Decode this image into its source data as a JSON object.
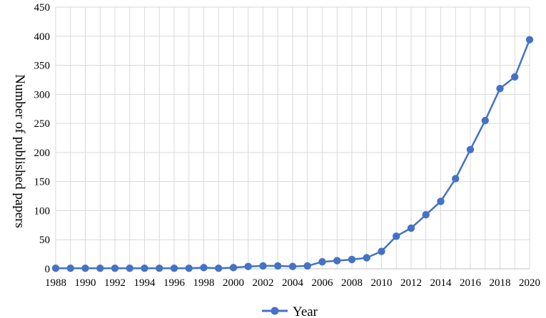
{
  "chart_data": {
    "type": "line",
    "title": "",
    "xlabel": "",
    "ylabel": "Number of published papers",
    "ylim": [
      0,
      450
    ],
    "y_ticks": [
      "0",
      "50",
      "100",
      "150",
      "200",
      "250",
      "300",
      "350",
      "400",
      "450"
    ],
    "x": [
      1988,
      1989,
      1990,
      1991,
      1992,
      1993,
      1994,
      1995,
      1996,
      1997,
      1998,
      1999,
      2000,
      2001,
      2002,
      2003,
      2004,
      2005,
      2006,
      2007,
      2008,
      2009,
      2010,
      2011,
      2012,
      2013,
      2014,
      2015,
      2016,
      2017,
      2018,
      2019,
      2020
    ],
    "x_ticks": [
      "1988",
      "1990",
      "1992",
      "1994",
      "1996",
      "1998",
      "2000",
      "2002",
      "2004",
      "2006",
      "2008",
      "2010",
      "2012",
      "2014",
      "2016",
      "2018",
      "2020"
    ],
    "grid": true,
    "legend_position": "bottom",
    "series": [
      {
        "name": "Year",
        "color": "#4472c4",
        "marker": "circle",
        "values": [
          1,
          1,
          1,
          1,
          1,
          1,
          1,
          1,
          1,
          1,
          2,
          1,
          2,
          4,
          5,
          5,
          4,
          5,
          12,
          14,
          16,
          19,
          30,
          56,
          70,
          93,
          116,
          155,
          205,
          255,
          310,
          330,
          394
        ]
      }
    ]
  }
}
